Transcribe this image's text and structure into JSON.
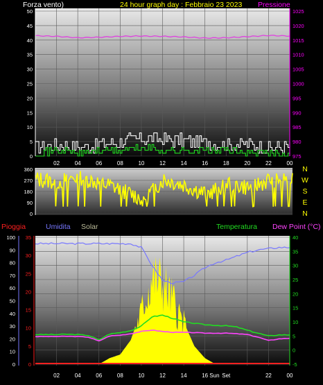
{
  "title": "24 hour graph day : Febbraio 23 2023",
  "top_chart": {
    "left_label": "Forza vento)",
    "right_label": "Pressione",
    "y_ticks": [
      "0",
      "5",
      "10",
      "15",
      "20",
      "25",
      "30",
      "35",
      "40",
      "45",
      "50"
    ],
    "y_right_ticks": [
      "975",
      "980",
      "985",
      "990",
      "995",
      "1000",
      "1005",
      "1010",
      "1015",
      "1020",
      "1025"
    ],
    "x_ticks": [
      "02",
      "04",
      "06",
      "08",
      "10",
      "12",
      "14",
      "16",
      "18",
      "20",
      "22",
      "00"
    ],
    "colors": {
      "pressure": "#e040e0",
      "gust": "#ffffff",
      "wind": "#22dd22",
      "left_axis_text": "#ffffff",
      "right_axis_text": "#ff00ff",
      "title": "#ffff00"
    }
  },
  "mid_chart": {
    "y_ticks": [
      "0",
      "90",
      "180",
      "270",
      "360"
    ],
    "compass": [
      "N",
      "W",
      "S",
      "E",
      "N"
    ],
    "color": "#ffff00"
  },
  "bottom_chart": {
    "legend": {
      "pioggia": "Pioggia",
      "umidita": "Umidita",
      "solar": "Solar",
      "temperatura": "Temperatura",
      "dewpoint": "Dew Point (°C)"
    },
    "left_ticks": [
      "0",
      "10",
      "20",
      "30",
      "40",
      "50",
      "60",
      "70",
      "80",
      "90",
      "100"
    ],
    "rain_ticks": [
      "0",
      "5",
      "10",
      "15",
      "20",
      "25",
      "30",
      "35"
    ],
    "temp_ticks": [
      "-5",
      "0",
      "5",
      "10",
      "15",
      "20",
      "25",
      "30",
      "35",
      "40"
    ],
    "x_ticks": [
      "02",
      "04",
      "06",
      "08",
      "10",
      "12",
      "14",
      "16",
      "",
      "22",
      "00"
    ],
    "sun_labels": [
      "Sun",
      "Set"
    ],
    "colors": {
      "pioggia": "#ff2020",
      "umidita": "#7777ff",
      "solar": "#bbbb99",
      "temperatura": "#22dd22",
      "dewpoint": "#ff44ff",
      "solar_fill": "#ffff00"
    }
  },
  "chart_data": [
    {
      "type": "line",
      "title": "24 hour graph day : Febbraio 23 2023",
      "xlabel": "",
      "ylabel": "Forza vento)",
      "x_hours": [
        0,
        2,
        4,
        6,
        8,
        10,
        12,
        14,
        16,
        18,
        20,
        22,
        24
      ],
      "series": [
        {
          "name": "Pressione",
          "axis": "right",
          "values": [
            1016.5,
            1016.3,
            1015.8,
            1016.0,
            1016.3,
            1016.4,
            1016.3,
            1016.1,
            1015.7,
            1015.8,
            1016.2,
            1016.6,
            1016.4
          ]
        },
        {
          "name": "",
          "axis": "left",
          "values": [
            3,
            4,
            3,
            4,
            5,
            6,
            6,
            5,
            5,
            4,
            4,
            3,
            3
          ]
        },
        {
          "name": "",
          "axis": "left",
          "values": [
            1,
            2,
            1,
            2,
            2,
            3,
            2,
            2,
            2,
            2,
            1,
            1,
            1
          ]
        }
      ],
      "ylim": [
        0,
        50
      ],
      "y2lim": [
        975,
        1025
      ]
    },
    {
      "type": "line",
      "ylim": [
        0,
        360
      ],
      "x_hours": [
        0,
        2,
        4,
        6,
        8,
        10,
        12,
        14,
        16,
        18,
        20,
        22,
        24
      ],
      "series": [
        {
          "name": "",
          "values": [
            280,
            260,
            300,
            250,
            200,
            120,
            280,
            230,
            160,
            250,
            210,
            280,
            290
          ]
        }
      ]
    },
    {
      "type": "line",
      "title": "",
      "x_hours": [
        0,
        1,
        2,
        3,
        4,
        5,
        6,
        7,
        8,
        9,
        10,
        11,
        12,
        13,
        14,
        15,
        16,
        17,
        18,
        19,
        20,
        21,
        22,
        23,
        24
      ],
      "series": [
        {
          "name": "Umidita",
          "axis": "humidity",
          "values": [
            95,
            95,
            95,
            95,
            95,
            95,
            95,
            95,
            95,
            95,
            92,
            78,
            66,
            64,
            65,
            70,
            76,
            80,
            82,
            85,
            88,
            90,
            91,
            92,
            92
          ]
        },
        {
          "name": "Temperatura",
          "axis": "temp",
          "values": [
            5.5,
            5.5,
            5.5,
            5.6,
            5.5,
            5.2,
            3.6,
            5.7,
            6.2,
            6.9,
            8.5,
            11.8,
            12.4,
            11.2,
            10.0,
            9.5,
            9.0,
            8.8,
            8.6,
            8.2,
            7.0,
            6.0,
            5.0,
            5.4,
            5.4
          ]
        },
        {
          "name": "Dew Point (°C)",
          "axis": "temp",
          "values": [
            4.8,
            4.8,
            4.8,
            4.9,
            4.8,
            4.6,
            3.2,
            5.0,
            5.3,
            5.8,
            6.6,
            7.1,
            6.6,
            6.3,
            6.3,
            6.2,
            6.0,
            6.0,
            6.0,
            5.8,
            5.5,
            4.6,
            3.4,
            4.0,
            4.2
          ]
        },
        {
          "name": "Solar",
          "axis": "solar",
          "values": [
            0,
            0,
            0,
            0,
            0,
            0,
            0,
            0.05,
            0.08,
            0.2,
            0.45,
            0.75,
            0.7,
            0.55,
            0.35,
            0.15,
            0.05,
            0,
            0,
            0,
            0,
            0,
            0,
            0,
            0
          ]
        },
        {
          "name": "Pioggia",
          "axis": "rain",
          "values": [
            0,
            0,
            0,
            0,
            0,
            0,
            0,
            0,
            0,
            0,
            0,
            0,
            0,
            0,
            0,
            0,
            0,
            0,
            0,
            0,
            0,
            0,
            0,
            0,
            0
          ]
        }
      ],
      "ylim": [
        0,
        100
      ],
      "temp_lim": [
        -5,
        40
      ],
      "rain_lim": [
        0,
        35
      ]
    }
  ]
}
